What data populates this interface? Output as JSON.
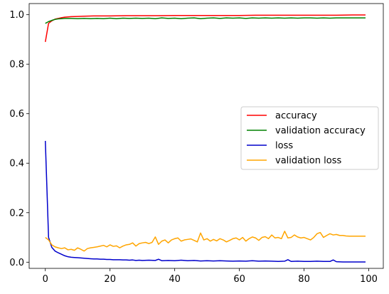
{
  "chart_data": {
    "type": "line",
    "title": "",
    "xlabel": "",
    "ylabel": "",
    "xlim": [
      -5,
      104.5
    ],
    "ylim": [
      -0.025,
      1.045
    ],
    "x_ticks": [
      0,
      20,
      40,
      60,
      80,
      100
    ],
    "x_tick_labels": [
      "0",
      "20",
      "40",
      "60",
      "80",
      "100"
    ],
    "y_ticks": [
      0.0,
      0.2,
      0.4,
      0.6,
      0.8,
      1.0
    ],
    "y_tick_labels": [
      "0.0",
      "0.2",
      "0.4",
      "0.6",
      "0.8",
      "1.0"
    ],
    "grid": false,
    "legend_position": "center-right",
    "series": [
      {
        "name": "accuracy",
        "color": "#ff0000",
        "x": [
          0,
          1,
          2,
          3,
          4,
          5,
          6,
          7,
          8,
          10,
          12,
          15,
          20,
          25,
          30,
          35,
          40,
          45,
          50,
          55,
          60,
          65,
          70,
          75,
          80,
          85,
          90,
          95,
          99
        ],
        "y": [
          0.89,
          0.965,
          0.975,
          0.982,
          0.985,
          0.988,
          0.99,
          0.991,
          0.992,
          0.993,
          0.994,
          0.995,
          0.995,
          0.996,
          0.996,
          0.996,
          0.997,
          0.997,
          0.997,
          0.997,
          0.997,
          0.998,
          0.998,
          0.998,
          0.998,
          0.998,
          0.998,
          0.999,
          0.999
        ]
      },
      {
        "name": "validation accuracy",
        "color": "#008000",
        "x": [
          0,
          1,
          2,
          3,
          4,
          5,
          6,
          8,
          10,
          12,
          14,
          16,
          18,
          20,
          22,
          24,
          26,
          28,
          30,
          32,
          34,
          36,
          38,
          40,
          42,
          44,
          46,
          48,
          50,
          52,
          54,
          56,
          58,
          60,
          62,
          64,
          66,
          68,
          70,
          72,
          74,
          76,
          78,
          80,
          82,
          84,
          86,
          88,
          90,
          92,
          94,
          96,
          99
        ],
        "y": [
          0.965,
          0.972,
          0.977,
          0.981,
          0.983,
          0.984,
          0.985,
          0.985,
          0.984,
          0.985,
          0.984,
          0.985,
          0.984,
          0.986,
          0.984,
          0.986,
          0.985,
          0.986,
          0.985,
          0.986,
          0.984,
          0.987,
          0.985,
          0.986,
          0.984,
          0.986,
          0.987,
          0.984,
          0.986,
          0.987,
          0.985,
          0.987,
          0.986,
          0.987,
          0.985,
          0.987,
          0.986,
          0.987,
          0.986,
          0.987,
          0.986,
          0.987,
          0.986,
          0.987,
          0.987,
          0.986,
          0.987,
          0.986,
          0.987,
          0.987,
          0.987,
          0.987,
          0.987
        ]
      },
      {
        "name": "loss",
        "color": "#0000cc",
        "x": [
          0,
          1,
          2,
          3,
          4,
          5,
          6,
          7,
          8,
          9,
          10,
          11,
          12,
          13,
          14,
          15,
          16,
          17,
          18,
          19,
          20,
          21,
          22,
          23,
          24,
          25,
          26,
          27,
          28,
          29,
          30,
          32,
          34,
          35,
          36,
          38,
          40,
          42,
          44,
          46,
          48,
          50,
          52,
          54,
          56,
          58,
          60,
          62,
          64,
          66,
          68,
          70,
          72,
          74,
          75,
          76,
          78,
          80,
          82,
          84,
          86,
          88,
          89,
          90,
          92,
          94,
          96,
          99
        ],
        "y": [
          0.49,
          0.1,
          0.06,
          0.045,
          0.038,
          0.032,
          0.026,
          0.022,
          0.02,
          0.019,
          0.018,
          0.017,
          0.016,
          0.015,
          0.014,
          0.013,
          0.013,
          0.012,
          0.012,
          0.011,
          0.011,
          0.01,
          0.01,
          0.01,
          0.009,
          0.009,
          0.008,
          0.009,
          0.007,
          0.008,
          0.007,
          0.008,
          0.007,
          0.012,
          0.006,
          0.007,
          0.006,
          0.008,
          0.006,
          0.007,
          0.005,
          0.006,
          0.005,
          0.006,
          0.005,
          0.004,
          0.005,
          0.004,
          0.006,
          0.004,
          0.005,
          0.004,
          0.003,
          0.004,
          0.01,
          0.003,
          0.004,
          0.003,
          0.003,
          0.004,
          0.003,
          0.003,
          0.009,
          0.002,
          0.001,
          0.001,
          0.001,
          0.001
        ]
      },
      {
        "name": "validation loss",
        "color": "#ffa500",
        "x": [
          0,
          1,
          2,
          3,
          4,
          5,
          6,
          7,
          8,
          9,
          10,
          11,
          12,
          13,
          14,
          15,
          16,
          17,
          18,
          19,
          20,
          21,
          22,
          23,
          24,
          25,
          26,
          27,
          28,
          29,
          30,
          31,
          32,
          33,
          34,
          35,
          36,
          37,
          38,
          39,
          40,
          41,
          42,
          43,
          44,
          45,
          46,
          47,
          48,
          49,
          50,
          51,
          52,
          53,
          54,
          55,
          56,
          57,
          58,
          59,
          60,
          61,
          62,
          63,
          64,
          65,
          66,
          67,
          68,
          69,
          70,
          71,
          72,
          73,
          74,
          75,
          76,
          77,
          78,
          79,
          80,
          81,
          82,
          83,
          84,
          85,
          86,
          87,
          88,
          89,
          90,
          91,
          92,
          93,
          94,
          95,
          96,
          97,
          98,
          99
        ],
        "y": [
          0.1,
          0.09,
          0.07,
          0.062,
          0.058,
          0.055,
          0.058,
          0.05,
          0.052,
          0.048,
          0.058,
          0.052,
          0.045,
          0.055,
          0.058,
          0.06,
          0.062,
          0.065,
          0.068,
          0.062,
          0.07,
          0.064,
          0.066,
          0.058,
          0.065,
          0.07,
          0.072,
          0.078,
          0.065,
          0.075,
          0.078,
          0.08,
          0.075,
          0.08,
          0.102,
          0.072,
          0.085,
          0.09,
          0.078,
          0.09,
          0.095,
          0.098,
          0.085,
          0.09,
          0.092,
          0.094,
          0.088,
          0.082,
          0.118,
          0.09,
          0.095,
          0.085,
          0.092,
          0.086,
          0.095,
          0.09,
          0.082,
          0.088,
          0.095,
          0.098,
          0.09,
          0.1,
          0.085,
          0.095,
          0.102,
          0.098,
          0.088,
          0.1,
          0.103,
          0.095,
          0.11,
          0.098,
          0.1,
          0.095,
          0.125,
          0.098,
          0.1,
          0.11,
          0.102,
          0.098,
          0.1,
          0.095,
          0.09,
          0.1,
          0.115,
          0.12,
          0.1,
          0.108,
          0.115,
          0.11,
          0.112,
          0.108,
          0.108,
          0.106,
          0.105,
          0.105,
          0.105,
          0.105,
          0.105,
          0.105
        ]
      }
    ]
  }
}
